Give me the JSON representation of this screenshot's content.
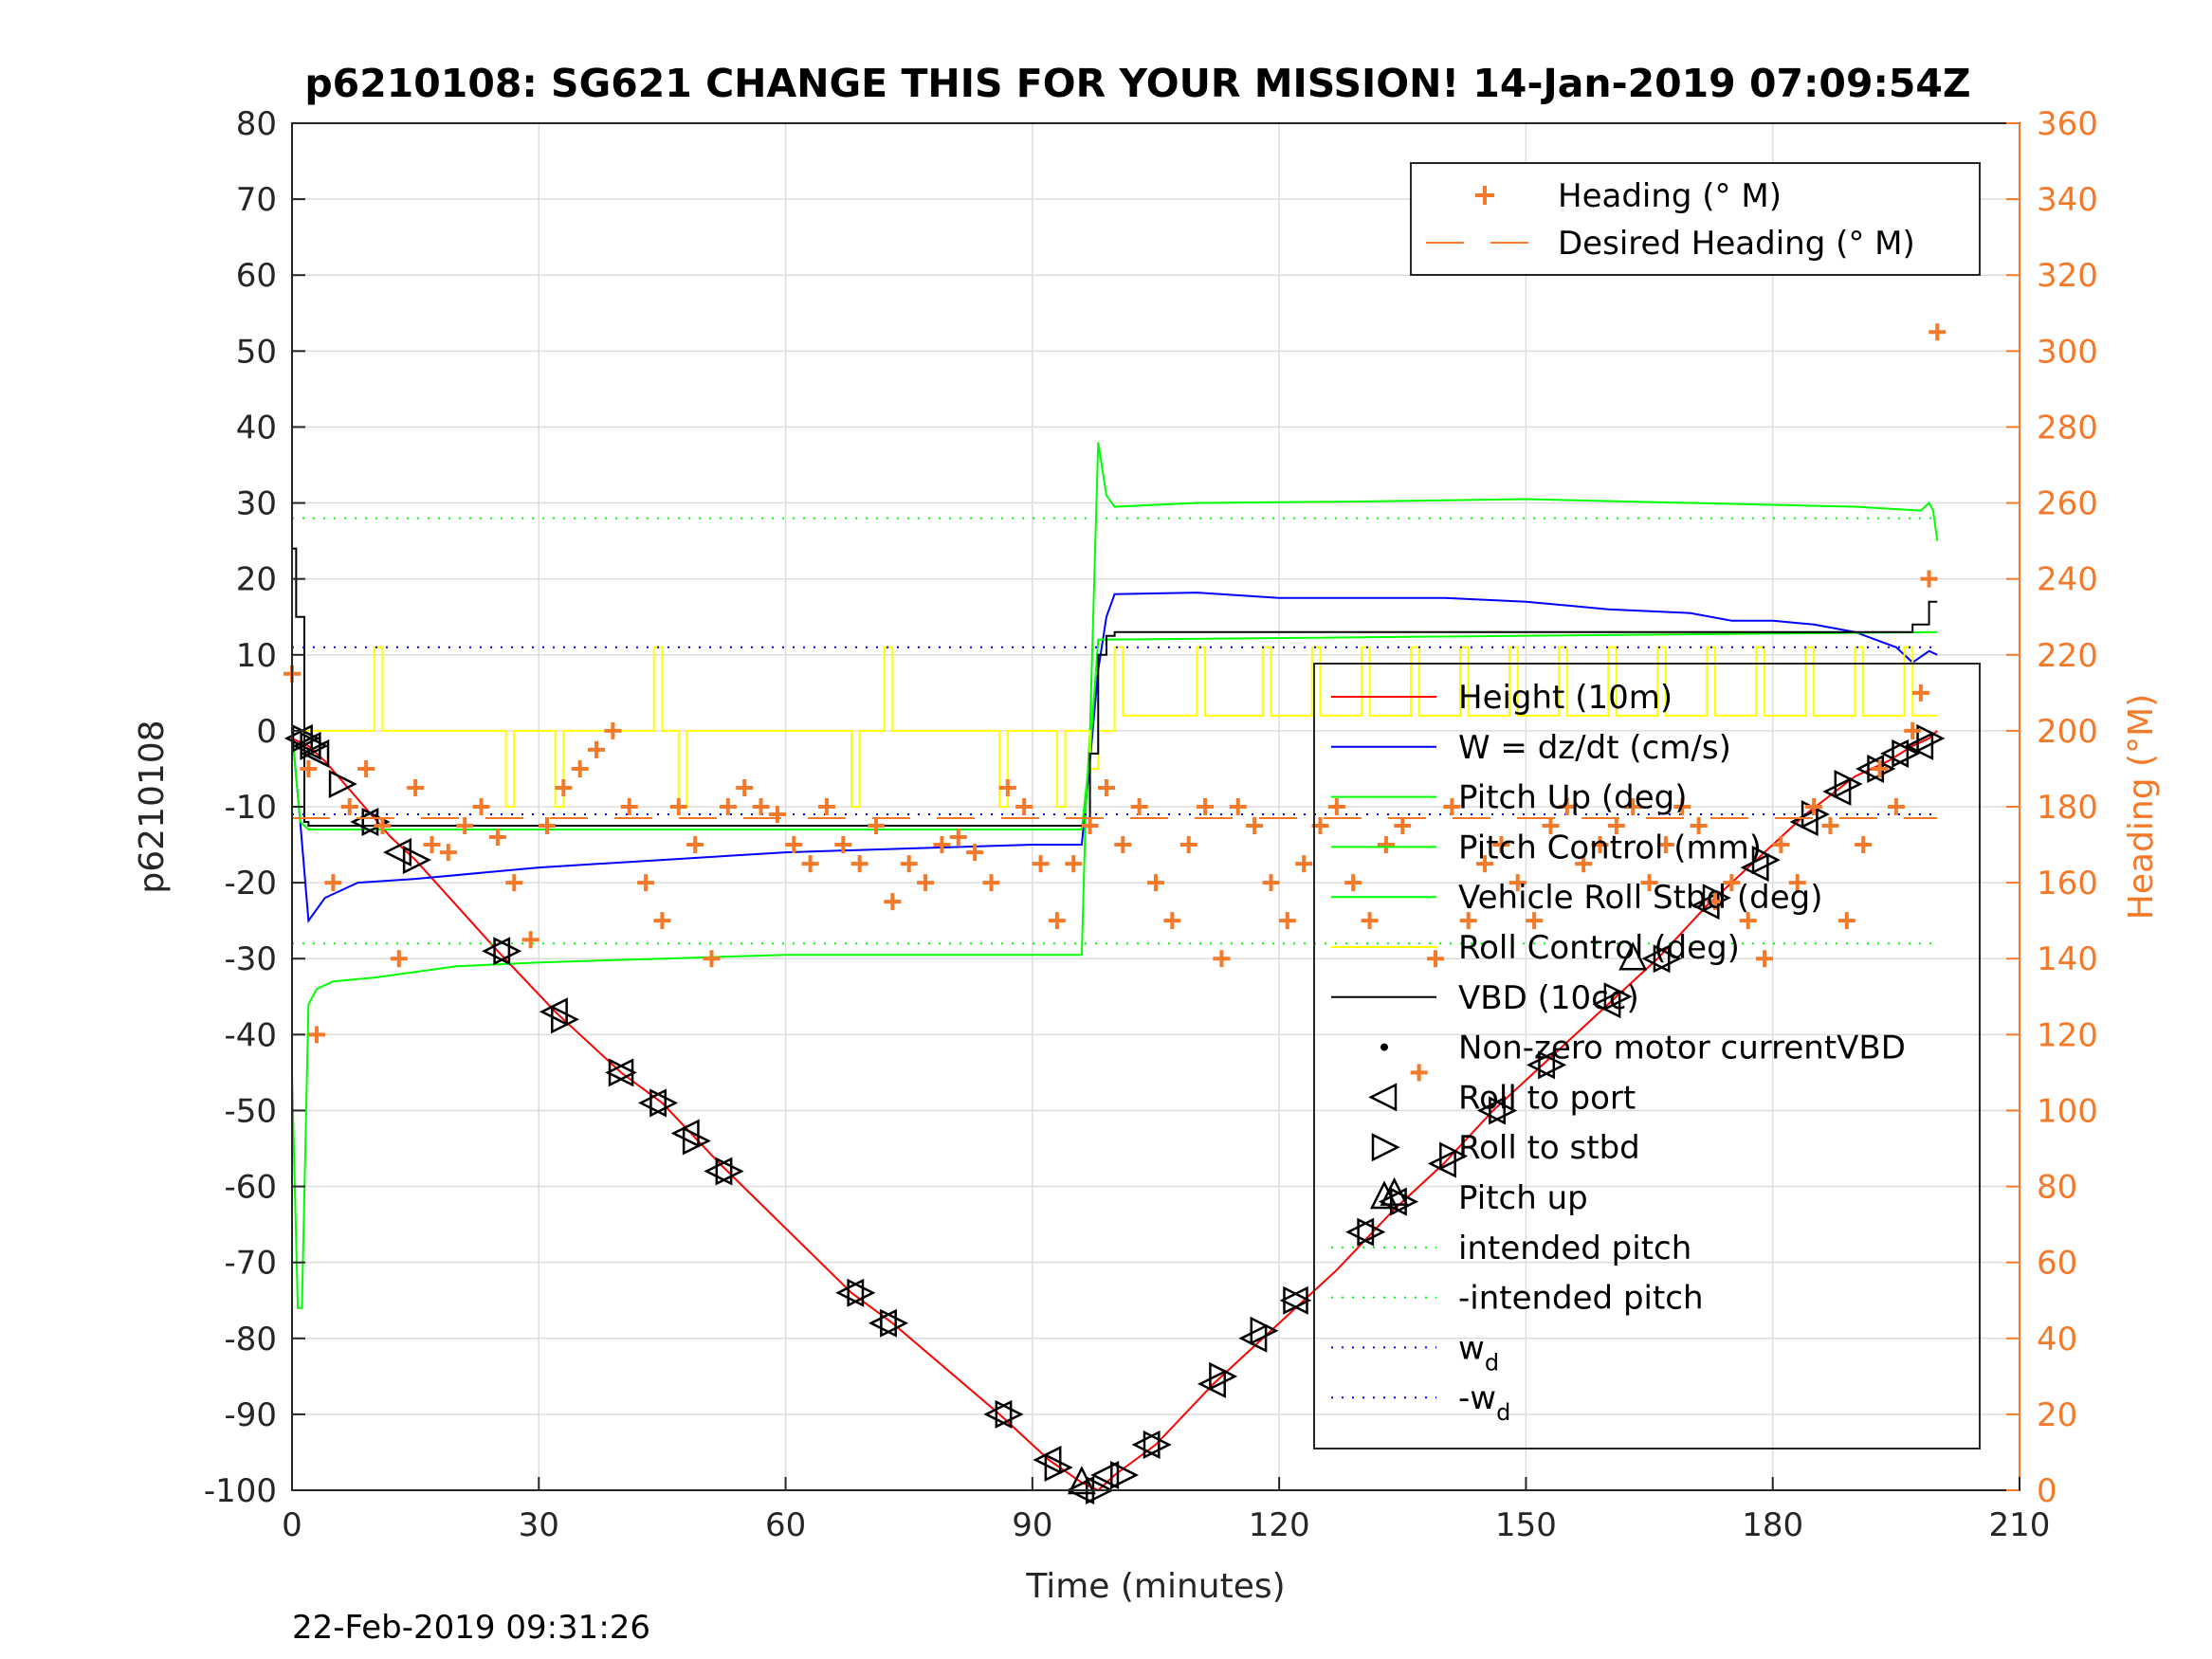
{
  "chart_data": {
    "type": "line",
    "title": "p6210108: SG621 CHANGE THIS FOR YOUR MISSION! 14-Jan-2019 07:09:54Z",
    "xlabel": "Time (minutes)",
    "ylabel": "p6210108",
    "y2label": "Heading (°M)",
    "xlim": [
      0,
      210
    ],
    "ylim": [
      -100,
      80
    ],
    "y2lim": [
      0,
      360
    ],
    "xticks": [
      0,
      30,
      60,
      90,
      120,
      150,
      180,
      210
    ],
    "yticks": [
      -100,
      -90,
      -80,
      -70,
      -60,
      -50,
      -40,
      -30,
      -20,
      -10,
      0,
      10,
      20,
      30,
      40,
      50,
      60,
      70,
      80
    ],
    "y2ticks": [
      0,
      20,
      40,
      60,
      80,
      100,
      120,
      140,
      160,
      180,
      200,
      220,
      240,
      260,
      280,
      300,
      320,
      340,
      360
    ],
    "grid": true,
    "timestamp": "22-Feb-2019 09:31:26",
    "colors": {
      "height": "#ff0000",
      "w": "#0000ff",
      "pitch": "#00ff00",
      "roll": "#ffff00",
      "vbd": "#000000",
      "heading": "#f47a2a"
    },
    "legend_right_axis": {
      "placement": "top-right",
      "entries": [
        "Heading (° M)",
        "Desired Heading (° M)"
      ]
    },
    "legend_main": {
      "placement": "right",
      "entries": [
        "Height (10m)",
        "W = dz/dt (cm/s)",
        "Pitch Up (deg)",
        "Pitch Control (mm)",
        "Vehicle Roll Stbd (deg)",
        "Roll Control (deg)",
        "VBD (10cc)",
        "Non-zero motor currentVBD",
        "Roll to port",
        "Roll to stbd",
        "Pitch up",
        "intended pitch",
        "-intended pitch",
        "w",
        "-w"
      ],
      "subscript": "d"
    },
    "series": [
      {
        "name": "Height (10m)",
        "axis": "left",
        "style": "line",
        "x": [
          0,
          2,
          4,
          8,
          12,
          15,
          25,
          32,
          40,
          45,
          52,
          68,
          73,
          86,
          92,
          96,
          98,
          100,
          105,
          112,
          120,
          127,
          134,
          140,
          146,
          152,
          160,
          166,
          172,
          178,
          184,
          190,
          194,
          197,
          199,
          200
        ],
        "y": [
          -1,
          -2,
          -4,
          -9,
          -14,
          -17,
          -29,
          -37,
          -45,
          -49,
          -57,
          -74,
          -78,
          -90,
          -96,
          -99,
          -100,
          -98,
          -94,
          -86,
          -78,
          -71,
          -63,
          -57,
          -50,
          -44,
          -36,
          -30,
          -23,
          -17,
          -11,
          -6,
          -4,
          -2,
          -1,
          0
        ]
      },
      {
        "name": "W = dz/dt (cm/s)",
        "axis": "left",
        "style": "line",
        "x": [
          0,
          1,
          2,
          4,
          8,
          15,
          30,
          45,
          60,
          75,
          90,
          96,
          97,
          98,
          99,
          100,
          110,
          120,
          140,
          150,
          160,
          170,
          175,
          180,
          185,
          190,
          195,
          197,
          199,
          200
        ],
        "y": [
          0,
          -12,
          -25,
          -22,
          -20,
          -19.5,
          -18,
          -17,
          -16,
          -15.5,
          -15,
          -15,
          -4,
          8,
          15,
          18,
          18.2,
          17.5,
          17.5,
          17,
          16,
          15.5,
          14.5,
          14.5,
          14,
          13,
          11,
          9,
          10.5,
          10
        ]
      },
      {
        "name": "Pitch Up (deg)",
        "axis": "left",
        "style": "line",
        "x": [
          0,
          0.7,
          1.2,
          2,
          3,
          5,
          10,
          20,
          30,
          45,
          60,
          75,
          90,
          96,
          96.5,
          97,
          98,
          99,
          100,
          110,
          130,
          150,
          170,
          190,
          198,
          199,
          199.5,
          200
        ],
        "y": [
          -45,
          -76,
          -76,
          -36,
          -34,
          -33,
          -32.5,
          -31,
          -30.5,
          -30,
          -29.5,
          -29.5,
          -29.5,
          -29.5,
          -10,
          0,
          38,
          31,
          29.5,
          30,
          30.2,
          30.5,
          30,
          29.5,
          29,
          30,
          29,
          25
        ]
      },
      {
        "name": "Pitch Control (mm)",
        "axis": "left",
        "style": "line",
        "x": [
          0,
          1,
          2,
          96,
          97,
          98,
          200
        ],
        "y": [
          0,
          -12,
          -13,
          -13,
          -3,
          12,
          13
        ]
      },
      {
        "name": "Roll Control (deg)",
        "axis": "left",
        "style": "step",
        "x": [
          0,
          2,
          4,
          9,
          10,
          11,
          26,
          27,
          32,
          33,
          44,
          45,
          47,
          48,
          68,
          69,
          72,
          73,
          86,
          87,
          93,
          94,
          97,
          98,
          100,
          101,
          110,
          111,
          118,
          119,
          124,
          125,
          130,
          131,
          136,
          137,
          142,
          143,
          148,
          149,
          154,
          155,
          160,
          161,
          166,
          167,
          172,
          173,
          178,
          179,
          184,
          185,
          190,
          191,
          196,
          197,
          200
        ],
        "y": [
          0,
          0,
          0,
          0,
          11,
          0,
          -10,
          0,
          -10,
          0,
          11,
          0,
          -10,
          0,
          -10,
          0,
          11,
          0,
          -10,
          0,
          -10,
          0,
          -5,
          0,
          11,
          2,
          11,
          2,
          11,
          2,
          11,
          2,
          11,
          2,
          11,
          2,
          11,
          2,
          11,
          2,
          11,
          2,
          11,
          2,
          11,
          2,
          11,
          2,
          11,
          2,
          11,
          2,
          11,
          2,
          11,
          2,
          2
        ]
      },
      {
        "name": "VBD (10cc)",
        "axis": "left",
        "style": "step",
        "x": [
          0,
          0.5,
          1.5,
          2,
          96,
          97,
          98,
          99,
          100,
          196,
          197,
          199,
          200
        ],
        "y": [
          24,
          15,
          -12,
          -12.5,
          -12.5,
          -3,
          10,
          12.5,
          13,
          13,
          14,
          17,
          17
        ]
      },
      {
        "name": "intended pitch",
        "axis": "left",
        "style": "dotted",
        "x": [
          0,
          200
        ],
        "y": [
          28,
          28
        ]
      },
      {
        "name": "-intended pitch",
        "axis": "left",
        "style": "dotted",
        "x": [
          0,
          200
        ],
        "y": [
          -28,
          -28
        ]
      },
      {
        "name": "w",
        "axis": "left",
        "style": "dotted",
        "x": [
          0,
          200
        ],
        "y": [
          11,
          11
        ]
      },
      {
        "name": "-w",
        "axis": "left",
        "style": "dotted",
        "x": [
          0,
          200
        ],
        "y": [
          -11,
          -11
        ]
      },
      {
        "name": "Roll to port",
        "axis": "left",
        "style": "marker-left",
        "x": [
          1,
          2,
          3,
          9,
          13,
          25,
          32,
          40,
          44,
          48,
          52,
          68,
          72,
          86,
          92,
          96,
          99,
          104,
          112,
          117,
          122,
          130,
          134,
          140,
          146,
          152,
          160,
          166,
          172,
          178,
          184,
          188,
          192,
          195,
          198
        ],
        "y": [
          -1,
          -2,
          -3,
          -12,
          -16,
          -29,
          -37,
          -45,
          -49,
          -53,
          -58,
          -74,
          -78,
          -90,
          -96,
          -100,
          -98,
          -94,
          -86,
          -80,
          -75,
          -66,
          -62,
          -57,
          -50,
          -44,
          -36,
          -30,
          -23,
          -18,
          -12,
          -8,
          -5,
          -3,
          -2
        ]
      },
      {
        "name": "Roll to stbd",
        "axis": "left",
        "style": "marker-right",
        "x": [
          1.5,
          2.5,
          6,
          10,
          15,
          26,
          33,
          40,
          45,
          49,
          53,
          69,
          73,
          87,
          93,
          98,
          101,
          105,
          113,
          118,
          122,
          131,
          135,
          141,
          147,
          153,
          161,
          167,
          173,
          179,
          185,
          189,
          193,
          196,
          199
        ],
        "y": [
          -1,
          -2,
          -7,
          -12,
          -17,
          -29,
          -38,
          -45,
          -49,
          -54,
          -58,
          -74,
          -78,
          -90,
          -97,
          -100,
          -98,
          -94,
          -85,
          -79,
          -75,
          -66,
          -62,
          -56,
          -50,
          -44,
          -35,
          -30,
          -22,
          -17,
          -11,
          -7,
          -5,
          -3,
          -1
        ]
      },
      {
        "name": "Pitch up",
        "axis": "left",
        "style": "marker-up",
        "x": [
          96,
          134,
          163
        ],
        "y": [
          -99,
          -61,
          -30
        ]
      },
      {
        "name": "Heading (° M)",
        "axis": "right",
        "style": "marker-plus",
        "x": [
          0,
          2,
          3,
          5,
          7,
          9,
          11,
          13,
          15,
          17,
          19,
          21,
          23,
          25,
          27,
          29,
          31,
          33,
          35,
          37,
          39,
          41,
          43,
          45,
          47,
          49,
          51,
          53,
          55,
          57,
          59,
          61,
          63,
          65,
          67,
          69,
          71,
          73,
          75,
          77,
          79,
          81,
          83,
          85,
          87,
          89,
          91,
          93,
          95,
          97,
          99,
          101,
          103,
          105,
          107,
          109,
          111,
          113,
          115,
          117,
          119,
          121,
          123,
          125,
          127,
          129,
          131,
          133,
          135,
          137,
          139,
          141,
          143,
          145,
          147,
          149,
          151,
          153,
          155,
          157,
          159,
          161,
          163,
          165,
          167,
          169,
          171,
          173,
          175,
          177,
          179,
          181,
          183,
          185,
          187,
          189,
          191,
          193,
          195,
          197,
          198,
          199,
          200
        ],
        "y": [
          215,
          190,
          120,
          160,
          180,
          190,
          175,
          140,
          185,
          170,
          168,
          175,
          180,
          172,
          160,
          145,
          175,
          185,
          190,
          195,
          200,
          180,
          160,
          150,
          180,
          170,
          140,
          180,
          185,
          180,
          178,
          170,
          165,
          180,
          170,
          165,
          175,
          155,
          165,
          160,
          170,
          172,
          168,
          160,
          185,
          180,
          165,
          150,
          165,
          175,
          185,
          170,
          180,
          160,
          150,
          170,
          180,
          140,
          180,
          175,
          160,
          150,
          165,
          175,
          180,
          160,
          150,
          170,
          175,
          110,
          140,
          180,
          150,
          165,
          170,
          160,
          150,
          175,
          180,
          165,
          170,
          175,
          180,
          160,
          170,
          180,
          175,
          155,
          160,
          150,
          140,
          170,
          160,
          180,
          175,
          150,
          170,
          190,
          180,
          200,
          210,
          240,
          305
        ]
      },
      {
        "name": "Desired Heading (° M)",
        "axis": "right",
        "style": "dashed",
        "x": [
          0,
          200
        ],
        "y": [
          177,
          177
        ]
      }
    ]
  }
}
